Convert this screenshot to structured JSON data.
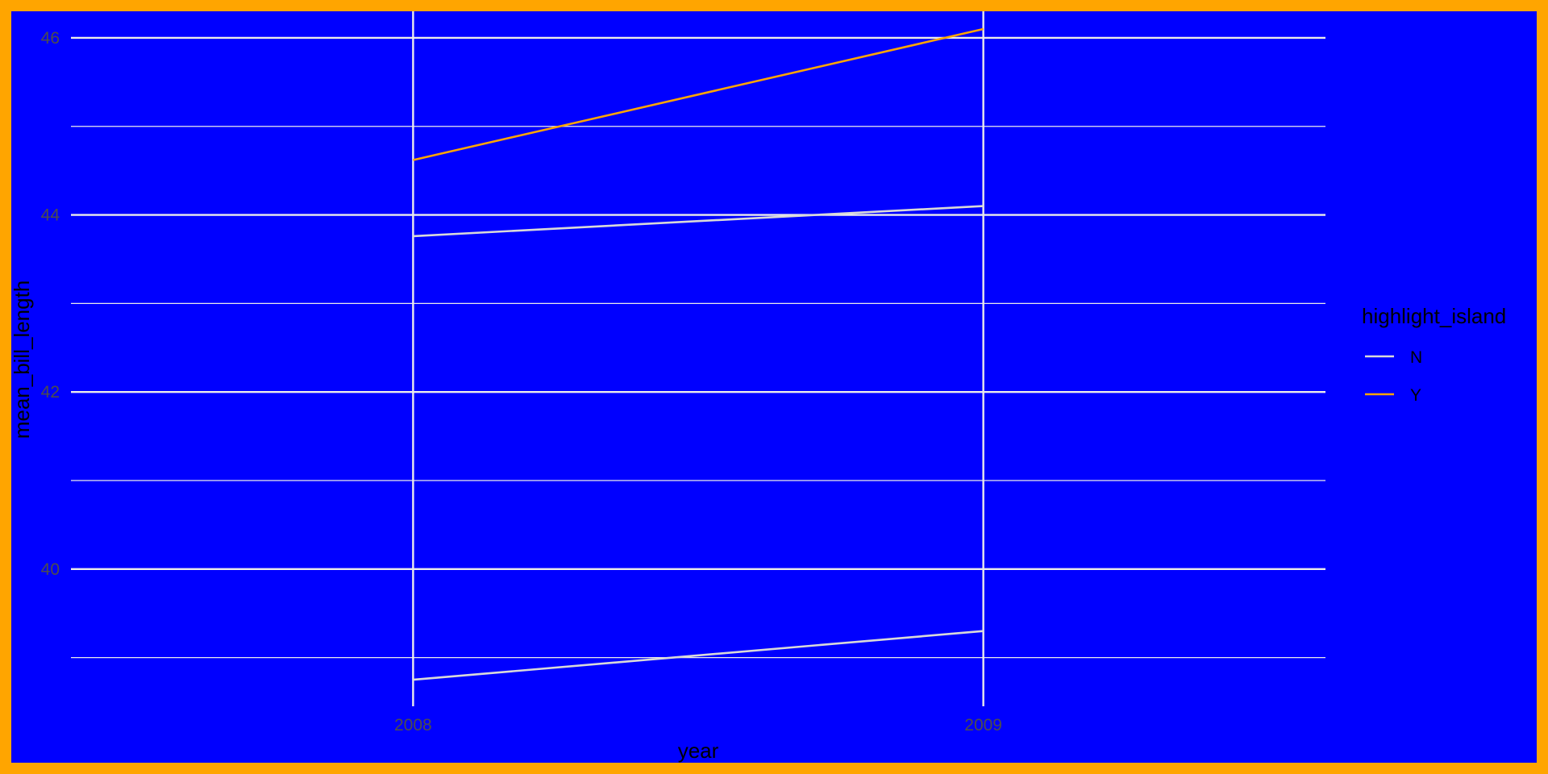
{
  "chart_data": {
    "type": "line",
    "xlabel": "year",
    "ylabel": "mean_bill_length",
    "x": [
      2008,
      2009
    ],
    "x_tick_labels": [
      "2008",
      "2009"
    ],
    "xlim": [
      2007.4,
      2009.6
    ],
    "ylim": [
      38.45,
      46.3
    ],
    "y_major_ticks": [
      40,
      42,
      44,
      46
    ],
    "y_tick_labels": [
      "40",
      "42",
      "44",
      "46"
    ],
    "y_minor_ticks": [
      39,
      41,
      43,
      45
    ],
    "grid": true,
    "legend": {
      "title": "highlight_island",
      "placement": "right",
      "entries": [
        {
          "label": "N",
          "color": "#d9d9d9"
        },
        {
          "label": "Y",
          "color": "#ffa500"
        }
      ]
    },
    "series": [
      {
        "group": "N",
        "color": "#d9d9d9",
        "values": [
          38.75,
          39.3
        ]
      },
      {
        "group": "N",
        "color": "#d9d9d9",
        "values": [
          43.76,
          44.1
        ]
      },
      {
        "group": "Y",
        "color": "#ffa500",
        "values": [
          44.62,
          46.1
        ]
      }
    ]
  },
  "colors": {
    "panel_background": "#0000ff",
    "border": "#ffa500",
    "gridline": "#ebebeb",
    "tick_text": "#4d4d4d",
    "text": "#000000"
  }
}
